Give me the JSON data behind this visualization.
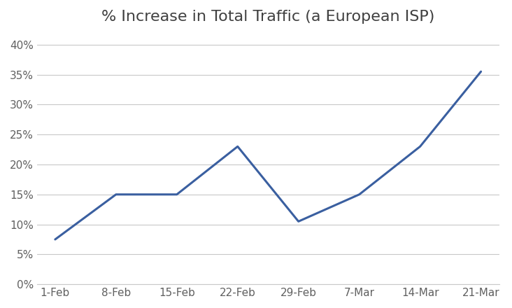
{
  "title": "% Increase in Total Traffic (a European ISP)",
  "x_labels": [
    "1-Feb",
    "8-Feb",
    "15-Feb",
    "22-Feb",
    "29-Feb",
    "7-Mar",
    "14-Mar",
    "21-Mar"
  ],
  "y_values": [
    0.075,
    0.15,
    0.15,
    0.23,
    0.105,
    0.15,
    0.23,
    0.355
  ],
  "line_color": "#3A5FA0",
  "background_color": "#ffffff",
  "plot_bg_color": "#ffffff",
  "title_color": "#404040",
  "tick_color": "#606060",
  "grid_color": "#c8c8c8",
  "ylim": [
    0.0,
    0.42
  ],
  "yticks": [
    0.0,
    0.05,
    0.1,
    0.15,
    0.2,
    0.25,
    0.3,
    0.35,
    0.4
  ],
  "ytick_labels": [
    "0%",
    "5%",
    "10%",
    "15%",
    "20%",
    "25%",
    "30%",
    "35%",
    "40%"
  ],
  "line_width": 2.2,
  "title_fontsize": 16,
  "tick_fontsize": 11
}
